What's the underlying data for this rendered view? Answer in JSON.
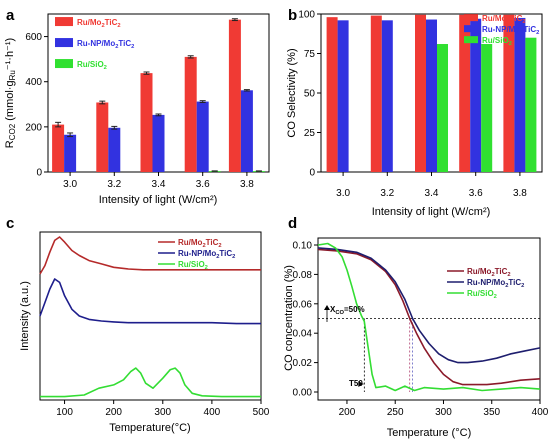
{
  "colors": {
    "a_red": "#f03a34",
    "a_blue": "#3232e0",
    "a_green": "#30e030",
    "c_red": "#b52a2a",
    "c_blue": "#1e1e8c",
    "c_green": "#33dd33",
    "d_red": "#8b1a2a",
    "d_blue": "#1e1e6e",
    "d_green": "#33dd33",
    "vline_red": "#b04070",
    "vline_blue": "#6060c0"
  },
  "chart_data": [
    {
      "panel": "a",
      "type": "bar",
      "xlabel": "Intensity of light (W/cm²)",
      "ylabel_parts": [
        "R",
        "CO2",
        " (mmol·g",
        "Ru",
        "⁻¹·h⁻¹)"
      ],
      "categories": [
        "3.0",
        "3.2",
        "3.4",
        "3.6",
        "3.8"
      ],
      "ylim": [
        0,
        700
      ],
      "yticks": [
        "0",
        "200",
        "400",
        "600"
      ],
      "legend_position": "top-left",
      "series": [
        {
          "name": "Ru/Mo2TiC2",
          "label_parts": [
            "Ru/Mo",
            "2",
            "TiC",
            "2"
          ],
          "values": [
            210,
            308,
            438,
            510,
            675
          ],
          "errors": [
            10,
            6,
            5,
            5,
            4
          ],
          "color_key": "a_red"
        },
        {
          "name": "Ru-NP/Mo2TiC2",
          "label_parts": [
            "Ru-NP/Mo",
            "2",
            "TiC",
            "2"
          ],
          "values": [
            165,
            196,
            253,
            312,
            362
          ],
          "errors": [
            8,
            6,
            4,
            4,
            3
          ],
          "color_key": "a_blue"
        },
        {
          "name": "Ru/SiO2",
          "label_parts": [
            "Ru/SiO",
            "2",
            "",
            ""
          ],
          "values": [
            0,
            0,
            0,
            4,
            4
          ],
          "errors": [
            0,
            0,
            0,
            1,
            1
          ],
          "color_key": "a_green"
        }
      ]
    },
    {
      "panel": "b",
      "type": "bar",
      "xlabel": "Intensity of light (W/cm²)",
      "ylabel": "CO Selectivity (%)",
      "categories": [
        "3.0",
        "3.2",
        "3.4",
        "3.6",
        "3.8"
      ],
      "ylim": [
        0,
        100
      ],
      "yticks": [
        "0",
        "25",
        "50",
        "75",
        "100"
      ],
      "legend_position": "top-right",
      "series": [
        {
          "name": "Ru/Mo2TiC2",
          "label_parts": [
            "Ru/Mo",
            "2",
            "TiC",
            "2"
          ],
          "values": [
            98,
            99,
            99.5,
            99.5,
            99.5
          ],
          "color_key": "a_red"
        },
        {
          "name": "Ru-NP/Mo2TiC2",
          "label_parts": [
            "Ru-NP/Mo",
            "2",
            "TiC",
            "2"
          ],
          "values": [
            96,
            96,
            96.5,
            97,
            97.5
          ],
          "color_key": "a_blue"
        },
        {
          "name": "Ru/SiO2",
          "label_parts": [
            "Ru/SiO",
            "2",
            "",
            ""
          ],
          "values": [
            null,
            null,
            81,
            81,
            85
          ],
          "color_key": "a_green"
        }
      ]
    },
    {
      "panel": "c",
      "type": "line",
      "xlabel": "Temperature(°C)",
      "ylabel": "Intensity (a.u.)",
      "xlim": [
        50,
        500
      ],
      "xticks": [
        "100",
        "200",
        "300",
        "400",
        "500"
      ],
      "legend_position": "top-right",
      "series": [
        {
          "name": "Ru/Mo2TiC2",
          "label_parts": [
            "Ru/Mo",
            "2",
            "TiC",
            "2"
          ],
          "color_key": "c_red",
          "x": [
            50,
            60,
            70,
            80,
            90,
            100,
            115,
            130,
            150,
            175,
            200,
            230,
            260,
            300,
            350,
            400,
            450,
            500
          ],
          "y": [
            0.75,
            0.8,
            0.88,
            0.95,
            0.97,
            0.94,
            0.89,
            0.86,
            0.83,
            0.81,
            0.79,
            0.78,
            0.775,
            0.775,
            0.775,
            0.775,
            0.775,
            0.775
          ]
        },
        {
          "name": "Ru-NP/Mo2TiC2",
          "label_parts": [
            "Ru-NP/Mo",
            "2",
            "TiC",
            "2"
          ],
          "color_key": "c_blue",
          "x": [
            50,
            60,
            70,
            80,
            90,
            100,
            115,
            130,
            150,
            175,
            200,
            230,
            260,
            300,
            350,
            400,
            450,
            500
          ],
          "y": [
            0.5,
            0.58,
            0.66,
            0.72,
            0.7,
            0.62,
            0.54,
            0.5,
            0.48,
            0.47,
            0.465,
            0.46,
            0.46,
            0.46,
            0.46,
            0.46,
            0.455,
            0.455
          ]
        },
        {
          "name": "Ru/SiO2",
          "label_parts": [
            "Ru/SiO",
            "2",
            "",
            ""
          ],
          "color_key": "c_green",
          "x": [
            50,
            100,
            140,
            170,
            200,
            220,
            235,
            245,
            255,
            265,
            280,
            300,
            315,
            325,
            335,
            345,
            360,
            380,
            420,
            460,
            500
          ],
          "y": [
            0.02,
            0.02,
            0.03,
            0.07,
            0.09,
            0.12,
            0.17,
            0.19,
            0.16,
            0.1,
            0.07,
            0.13,
            0.18,
            0.19,
            0.16,
            0.09,
            0.04,
            0.025,
            0.02,
            0.02,
            0.02
          ]
        }
      ]
    },
    {
      "panel": "d",
      "type": "line",
      "xlabel": "Temperature (°C)",
      "ylabel": "CO concentration (%)",
      "xlim": [
        170,
        400
      ],
      "ylim": [
        0,
        0.1
      ],
      "xticks": [
        "200",
        "250",
        "300",
        "350",
        "400"
      ],
      "yticks": [
        "0.00",
        "0.02",
        "0.04",
        "0.06",
        "0.08",
        "0.10"
      ],
      "legend_position": "top-right",
      "annotations": {
        "x50_label": "X",
        "x50_sub": "CO",
        "x50_rest": "=50%",
        "t50_label": "T50",
        "half_conversion": 0.05,
        "t50_green": 218,
        "t50_red": 265,
        "t50_blue": 268
      },
      "series": [
        {
          "name": "Ru/Mo2TiC2",
          "label_parts": [
            "Ru/Mo",
            "2",
            "TiC",
            "2"
          ],
          "color_key": "d_red",
          "x": [
            170,
            190,
            210,
            225,
            240,
            250,
            258,
            265,
            272,
            280,
            290,
            300,
            310,
            320,
            330,
            345,
            360,
            380,
            400
          ],
          "y": [
            0.097,
            0.096,
            0.094,
            0.09,
            0.082,
            0.073,
            0.062,
            0.05,
            0.04,
            0.03,
            0.02,
            0.012,
            0.007,
            0.005,
            0.005,
            0.005,
            0.006,
            0.008,
            0.009
          ]
        },
        {
          "name": "Ru-NP/Mo2TiC2",
          "label_parts": [
            "Ru-NP/Mo",
            "2",
            "TiC",
            "2"
          ],
          "color_key": "d_blue",
          "x": [
            170,
            190,
            210,
            225,
            240,
            250,
            260,
            268,
            275,
            285,
            295,
            305,
            315,
            325,
            340,
            355,
            370,
            385,
            400
          ],
          "y": [
            0.098,
            0.097,
            0.095,
            0.091,
            0.083,
            0.075,
            0.063,
            0.05,
            0.042,
            0.033,
            0.026,
            0.022,
            0.02,
            0.02,
            0.021,
            0.023,
            0.026,
            0.028,
            0.03
          ]
        },
        {
          "name": "Ru/SiO2",
          "label_parts": [
            "Ru/SiO",
            "2",
            "",
            ""
          ],
          "color_key": "d_green",
          "x": [
            170,
            180,
            188,
            195,
            200,
            205,
            210,
            215,
            218,
            222,
            226,
            230,
            240,
            250,
            260,
            270,
            280,
            300,
            320,
            340,
            360,
            380,
            400
          ],
          "y": [
            0.1,
            0.101,
            0.098,
            0.092,
            0.083,
            0.072,
            0.06,
            0.052,
            0.048,
            0.03,
            0.012,
            0.003,
            0.004,
            0.001,
            0.004,
            0.001,
            0.003,
            0.002,
            0.003,
            0.001,
            0.002,
            0.003,
            0.002
          ]
        }
      ]
    }
  ]
}
